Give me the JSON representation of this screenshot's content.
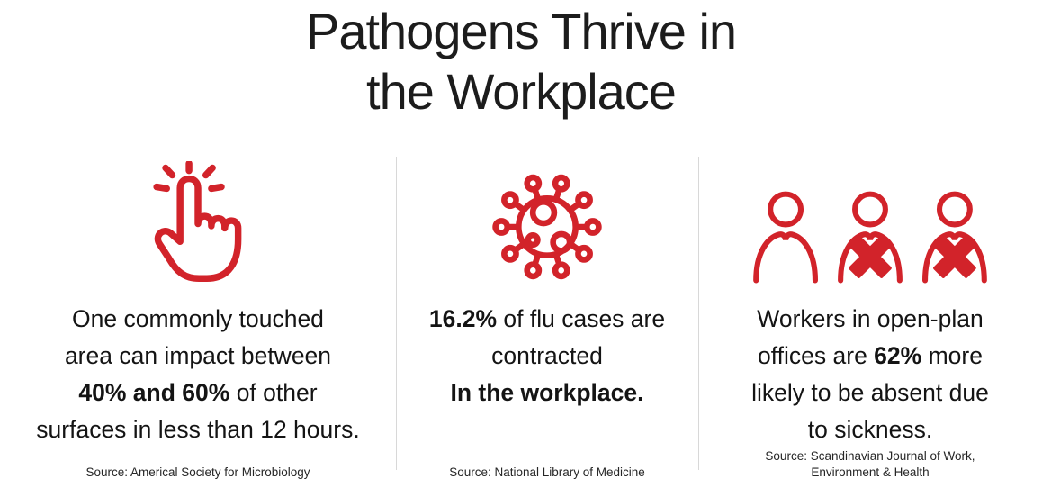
{
  "header": {
    "title_line1": "Pathogens Thrive in",
    "title_line2": "the Workplace"
  },
  "colors": {
    "accent_red": "#d2232a",
    "title_text": "#1c1c1c",
    "body_text": "#141414",
    "divider": "#d8d8d8",
    "background": "#ffffff"
  },
  "columns": [
    {
      "id": "touched-surfaces",
      "icon": "tap-gesture-icon",
      "lines": [
        [
          {
            "t": "One commonly touched",
            "b": false
          }
        ],
        [
          {
            "t": "area can impact between",
            "b": false
          }
        ],
        [
          {
            "t": "40% and 60%",
            "b": true
          },
          {
            "t": " of other",
            "b": false
          }
        ],
        [
          {
            "t": "surfaces in less than 12 hours.",
            "b": false
          }
        ]
      ],
      "source": "Source: Americal Society for Microbiology"
    },
    {
      "id": "flu-cases",
      "icon": "virus-icon",
      "lines": [
        [
          {
            "t": "16.2%",
            "b": true
          },
          {
            "t": " of flu cases are",
            "b": false
          }
        ],
        [
          {
            "t": "contracted",
            "b": false
          }
        ],
        [
          {
            "t": "In the workplace.",
            "b": true
          }
        ]
      ],
      "source": "Source: National Library of Medicine"
    },
    {
      "id": "open-plan-absence",
      "icon": "sick-workers-icon",
      "lines": [
        [
          {
            "t": "Workers in open-plan",
            "b": false
          }
        ],
        [
          {
            "t": "offices are ",
            "b": false
          },
          {
            "t": "62%",
            "b": true
          },
          {
            "t": " more",
            "b": false
          }
        ],
        [
          {
            "t": "likely to be absent due",
            "b": false
          }
        ],
        [
          {
            "t": "to sickness.",
            "b": false
          }
        ]
      ],
      "source": "Source: Scandinavian Journal of Work, Environment & Health"
    }
  ]
}
